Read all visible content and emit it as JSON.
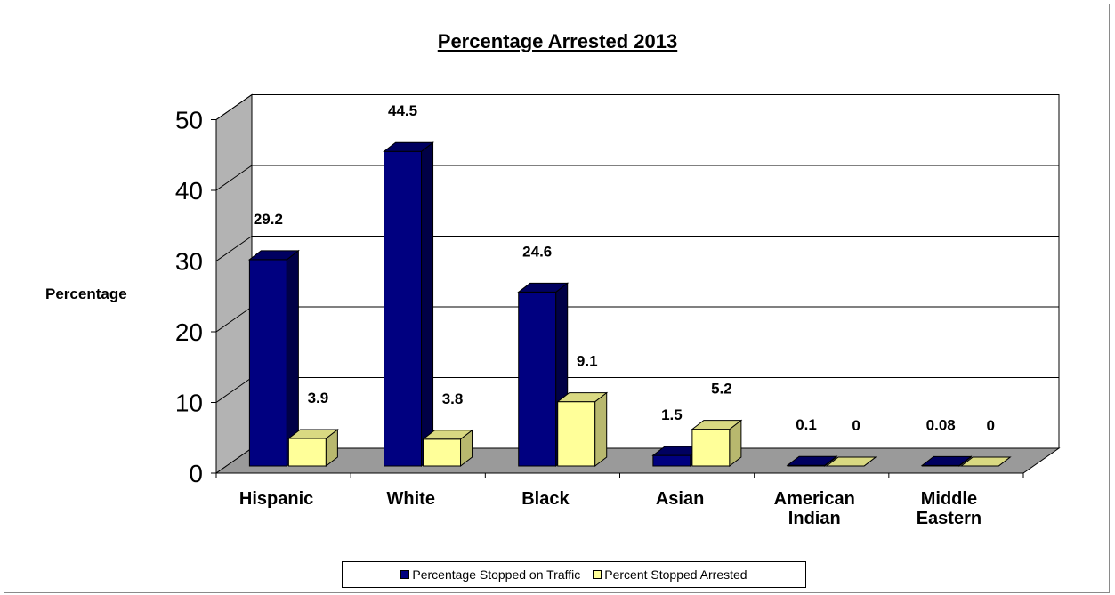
{
  "chart_data": {
    "type": "bar",
    "title": "Percentage Arrested 2013",
    "ylabel": "Percentage",
    "xlabel": "",
    "ylim": [
      0,
      50
    ],
    "yticks": [
      0,
      10,
      20,
      30,
      40,
      50
    ],
    "categories": [
      [
        "Hispanic"
      ],
      [
        "White"
      ],
      [
        "Black"
      ],
      [
        "Asian"
      ],
      [
        "American",
        "Indian"
      ],
      [
        "Middle",
        "Eastern"
      ]
    ],
    "series": [
      {
        "name": "Percentage Stopped on Traffic",
        "color": "#000080",
        "values": [
          29.2,
          44.5,
          24.6,
          1.5,
          0.1,
          0.08
        ],
        "labels": [
          "29.2",
          "44.5",
          "24.6",
          "1.5",
          "0.1",
          "0.08"
        ]
      },
      {
        "name": "Percent Stopped Arrested",
        "color": "#FFFF99",
        "values": [
          3.9,
          3.8,
          9.1,
          5.2,
          0,
          0
        ],
        "labels": [
          "3.9",
          "3.8",
          "9.1",
          "5.2",
          "0",
          "0"
        ]
      }
    ],
    "legend_position": "bottom",
    "grid": true,
    "three_d": true
  }
}
